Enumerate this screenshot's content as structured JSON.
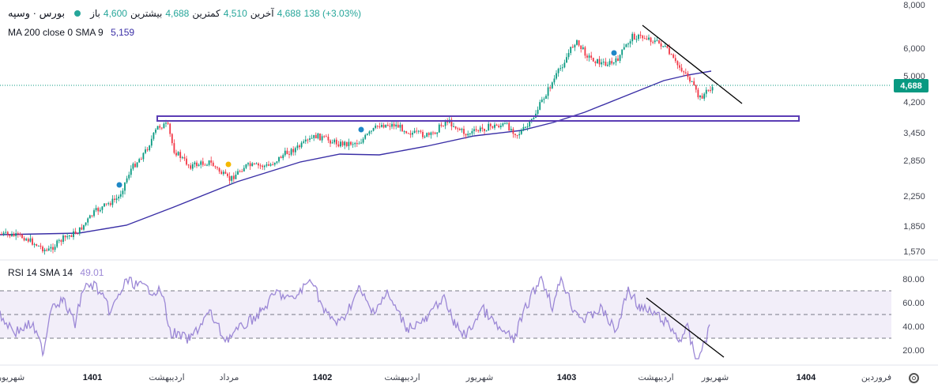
{
  "legend": {
    "symbol": "بورس · وسپه",
    "open_label": "باز",
    "open_value": "4,600",
    "high_label": "بیشترین",
    "high_value": "4,688",
    "low_label": "کمترین",
    "low_value": "4,510",
    "close_label": "آخرین",
    "close_value": "4,688",
    "change": "138 (+3.03%)",
    "ma_label": "MA 200 close 0 SMA 9",
    "ma_value": "5,159",
    "rsi_label": "RSI 14 SMA 14",
    "rsi_value": "49.01",
    "last_price_badge": "4,688"
  },
  "colors": {
    "up": "#089981",
    "down": "#f23645",
    "ma": "#3a2fa6",
    "rsi": "#9c88d6",
    "trend": "#000000",
    "box": "#5b3db5"
  },
  "chart_data": [
    {
      "type": "candlestick",
      "scale": "log",
      "ylim": [
        1450,
        8000
      ],
      "y_ticks": [
        "8,000",
        "6,000",
        "5,000",
        "4,200",
        "3,450",
        "2,850",
        "2,250",
        "1,850",
        "1,570"
      ],
      "last_price": 4688,
      "series": [
        {
          "name": "MA 200 close 0 SMA 9"
        }
      ],
      "x_ticks": [
        "شهریور",
        "1401",
        "اردیبهشت",
        "مرداد",
        "1402",
        "اردیبهشت",
        "شهریور",
        "1403",
        "اردیبهشت",
        "شهریور",
        "1404",
        "فروردین"
      ],
      "x_ticks_bold": [
        "1401",
        "1402",
        "1403",
        "1404"
      ]
    },
    {
      "type": "line",
      "ylim": [
        10,
        90
      ],
      "y_ticks": [
        "80.00",
        "60.00",
        "40.00",
        "20.00"
      ],
      "band": [
        30,
        70
      ],
      "midline": 50,
      "last_value": 49.01,
      "series": [
        {
          "name": "RSI 14 SMA 14"
        }
      ]
    }
  ]
}
